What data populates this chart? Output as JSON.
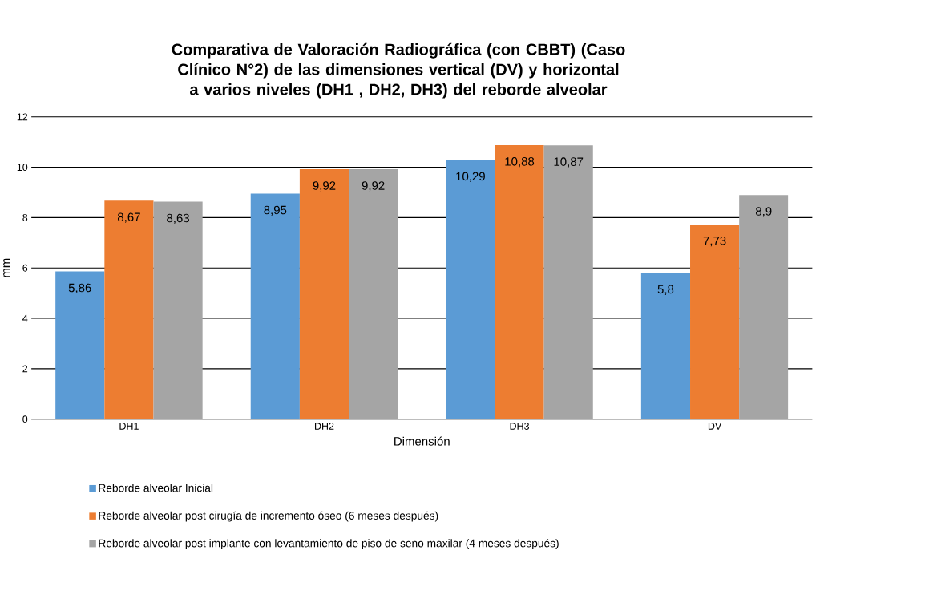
{
  "chart_data": {
    "type": "bar",
    "title": "Comparativa de Valoración Radiográfica (con CBBT) (Caso Clínico N°2) de las dimensiones vertical (DV) y horizontal a varios niveles (DH1 , DH2, DH3) del  reborde alveolar",
    "xlabel": "Dimensión",
    "ylabel": "mm",
    "categories": [
      "DH1",
      "DH2",
      "DH3",
      "DV"
    ],
    "series": [
      {
        "name": "Reborde alveolar Inicial",
        "color": "#5b9bd5",
        "values": [
          5.86,
          8.95,
          10.29,
          5.8
        ],
        "value_labels": [
          "5,86",
          "8,95",
          "10,29",
          "5,8"
        ]
      },
      {
        "name": "Reborde alveolar post cirugía de incremento óseo (6 meses después)",
        "color": "#ed7d31",
        "values": [
          8.67,
          9.92,
          10.88,
          7.73
        ],
        "value_labels": [
          "8,67",
          "9,92",
          "10,88",
          "7,73"
        ]
      },
      {
        "name": "Reborde alveolar post implante con levantamiento de piso de seno maxilar (4 meses después)",
        "color": "#a5a5a5",
        "values": [
          8.63,
          9.92,
          10.87,
          8.9
        ],
        "value_labels": [
          "8,63",
          "9,92",
          "10,87",
          "8,9"
        ]
      }
    ],
    "ylim": [
      0,
      12
    ],
    "yticks": [
      0,
      2,
      4,
      6,
      8,
      10,
      12
    ],
    "grid": "y",
    "legend": "bottom"
  }
}
